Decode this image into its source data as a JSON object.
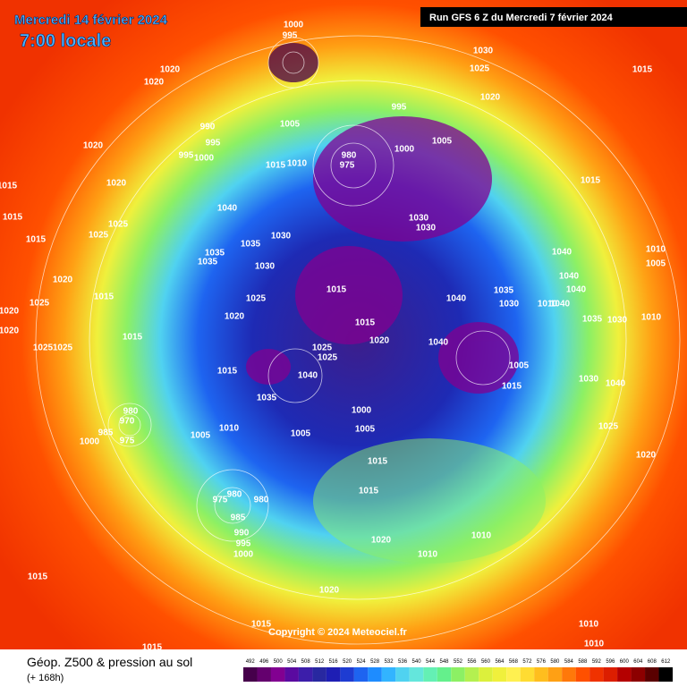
{
  "header": {
    "date": "Mercredi 14 février 2024",
    "time": "7:00 locale",
    "run": "Run GFS 6 Z du Mercredi 7 février 2024"
  },
  "copyright": "Copyright © 2024 Meteociel.fr",
  "legend": {
    "title": "Géop. Z500 & pression au sol",
    "lead": "(+ 168h)"
  },
  "colorbar": {
    "ticks": [
      492,
      496,
      500,
      504,
      508,
      512,
      516,
      520,
      524,
      528,
      532,
      536,
      540,
      544,
      548,
      552,
      556,
      560,
      564,
      568,
      572,
      576,
      580,
      584,
      588,
      592,
      596,
      600,
      604,
      608,
      612
    ],
    "colors": [
      "#46004b",
      "#64006e",
      "#820091",
      "#5a0aa0",
      "#3c1eaa",
      "#2828a0",
      "#1e1eb4",
      "#1e3cd2",
      "#1e64f0",
      "#1e8cff",
      "#32b4ff",
      "#50d2f0",
      "#64e6dc",
      "#64f0b4",
      "#64f08c",
      "#8cf064",
      "#b4f050",
      "#dcf03c",
      "#f0f03c",
      "#fff050",
      "#ffdc32",
      "#ffbe1e",
      "#ffa014",
      "#ff780a",
      "#ff5000",
      "#f03200",
      "#dc1e00",
      "#b40000",
      "#8c0000",
      "#5a0000",
      "#000000"
    ]
  },
  "isobar_labels": [
    1000,
    995,
    1030,
    1025,
    1020,
    1020,
    1015,
    1020,
    995,
    990,
    995,
    1005,
    1005,
    1000,
    980,
    975,
    995,
    1000,
    1020,
    1015,
    1010,
    1020,
    1015,
    1015,
    1015,
    1030,
    1030,
    1040,
    1025,
    1025,
    1015,
    1035,
    1035,
    1035,
    1030,
    1030,
    1040,
    1010,
    1005,
    1020,
    1035,
    1040,
    1040,
    1015,
    1025,
    1015,
    1040,
    1030,
    1010,
    1040,
    1035,
    1030,
    1010,
    1020,
    1025,
    1020,
    1015,
    1020,
    1015,
    1020,
    1040,
    1025,
    1025,
    1025,
    1025,
    1015,
    1005,
    1015,
    1030,
    1040,
    1035,
    1040,
    1000,
    1005,
    1005,
    1005,
    1010,
    980,
    970,
    985,
    975,
    1000,
    1025,
    1020,
    1015,
    1015,
    975,
    980,
    980,
    985,
    990,
    995,
    1000,
    1020,
    1010,
    1010,
    1020,
    1015,
    1015,
    1015,
    1010,
    1010
  ]
}
